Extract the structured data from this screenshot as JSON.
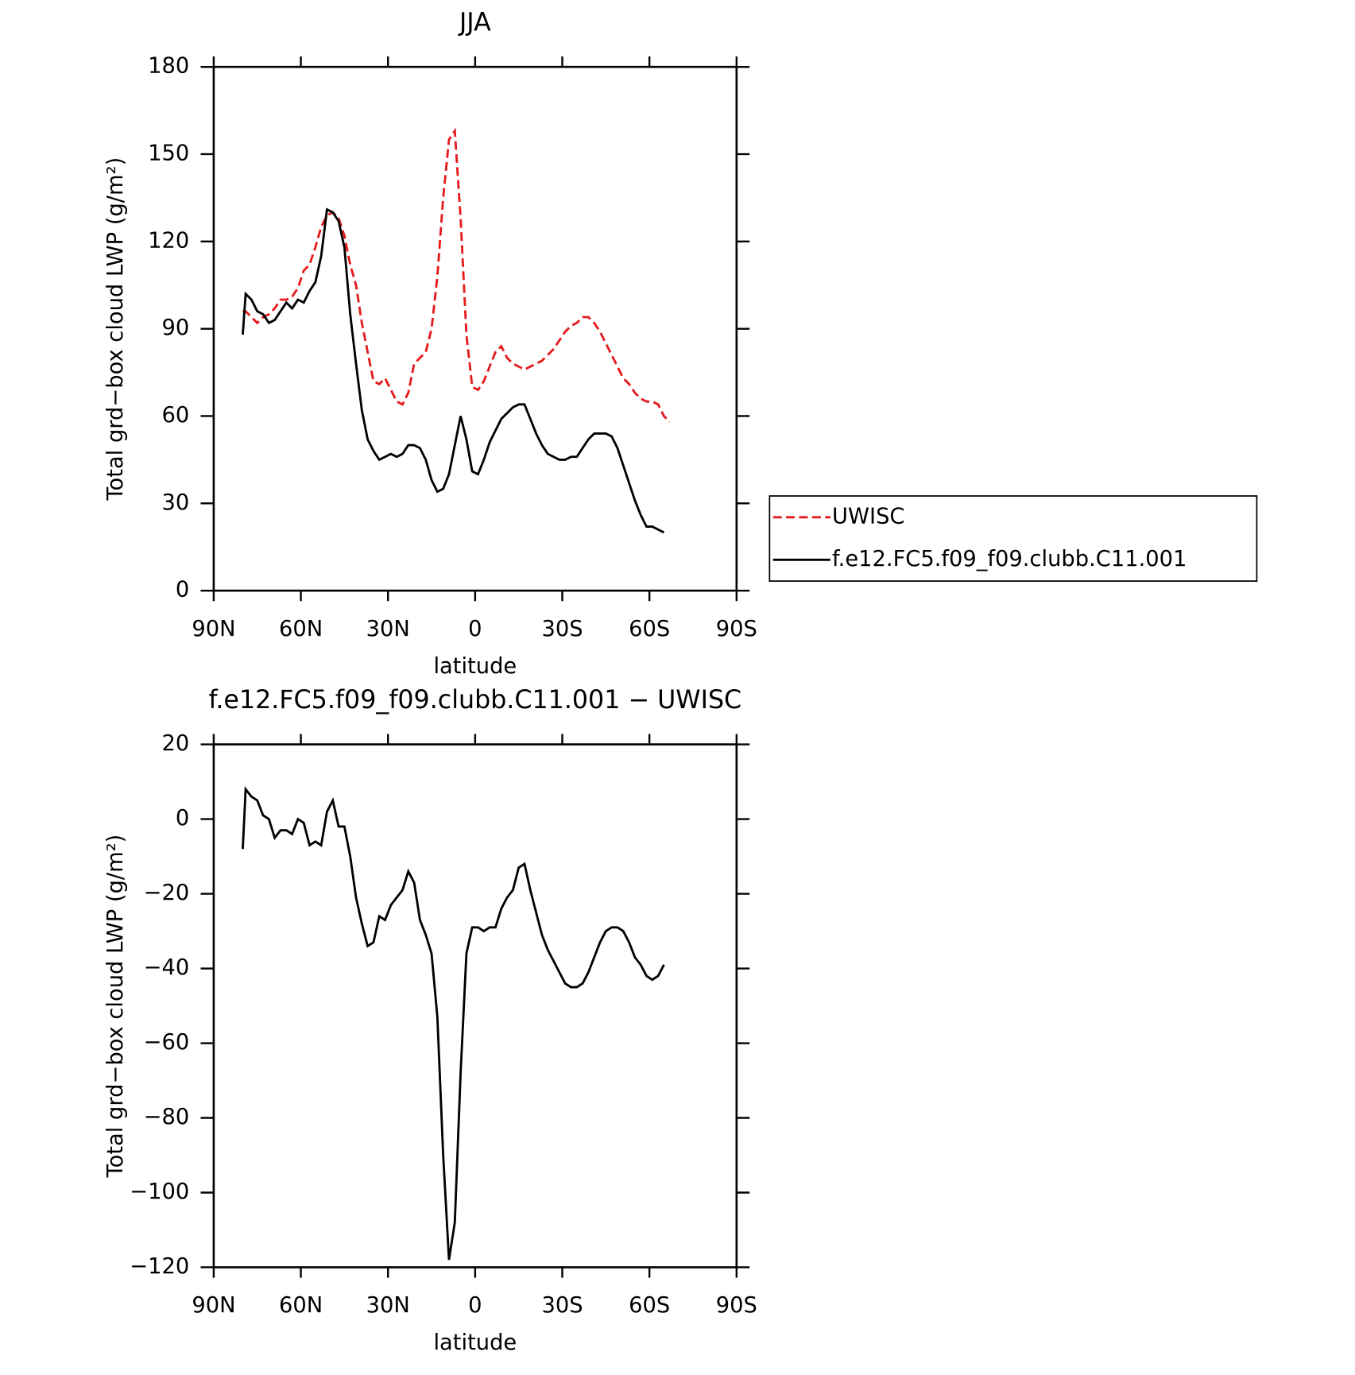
{
  "chart_data": [
    {
      "type": "line",
      "title": "JJA",
      "xlabel": "latitude",
      "ylabel": "Total grd−box cloud LWP (g/m²)",
      "x": [
        80,
        79,
        77,
        75,
        73,
        71,
        69,
        67,
        65,
        63,
        61,
        59,
        57,
        55,
        53,
        51,
        49,
        47,
        45,
        43,
        41,
        39,
        37,
        35,
        33,
        31,
        29,
        27,
        25,
        23,
        21,
        19,
        17,
        15,
        13,
        11,
        9,
        7,
        5,
        3,
        1,
        -1,
        -3,
        -5,
        -7,
        -9,
        -11,
        -13,
        -15,
        -17,
        -19,
        -21,
        -23,
        -25,
        -27,
        -29,
        -31,
        -33,
        -35,
        -37,
        -39,
        -41,
        -43,
        -45,
        -47,
        -49,
        -51,
        -53,
        -55,
        -57,
        -59,
        -61,
        -63,
        -65,
        -67
      ],
      "series": [
        {
          "name": "UWISC",
          "color": "#e41a1c",
          "linestyle": "dashed",
          "values": [
            96,
            96,
            94,
            92,
            94,
            95,
            97,
            100,
            100,
            101,
            104,
            110,
            112,
            118,
            125,
            129,
            130,
            128,
            122,
            112,
            105,
            92,
            82,
            72,
            71,
            73,
            69,
            65,
            64,
            68,
            78,
            80,
            82,
            90,
            108,
            135,
            155,
            158,
            128,
            88,
            70,
            69,
            72,
            77,
            82,
            84,
            80,
            78,
            77,
            76,
            77,
            78,
            79,
            81,
            83,
            86,
            89,
            91,
            92,
            94,
            94,
            92,
            89,
            85,
            81,
            77,
            73,
            71,
            68,
            66,
            65,
            65,
            64,
            60,
            58
          ]
        },
        {
          "name": "f.e12.FC5.f09_f09.clubb.C11.001",
          "color": "#000000",
          "linestyle": "solid",
          "values": [
            88,
            102,
            100,
            96,
            95,
            92,
            93,
            96,
            99,
            97,
            100,
            99,
            103,
            106,
            115,
            131,
            130,
            127,
            118,
            95,
            78,
            62,
            52,
            48,
            45,
            46,
            47,
            46,
            47,
            50,
            50,
            49,
            45,
            38,
            34,
            35,
            40,
            50,
            60,
            52,
            41,
            40,
            45,
            51,
            55,
            59,
            61,
            63,
            64,
            64,
            59,
            54,
            50,
            47,
            46,
            45,
            45,
            46,
            46,
            49,
            52,
            54,
            54,
            54,
            53,
            49,
            43,
            37,
            31,
            26,
            22,
            22,
            21,
            20,
            null
          ]
        }
      ],
      "xlim": [
        90,
        -90
      ],
      "xticks": [
        {
          "value": 90,
          "label": "90N"
        },
        {
          "value": 60,
          "label": "60N"
        },
        {
          "value": 30,
          "label": "30N"
        },
        0,
        {
          "value": -30,
          "label": "30S"
        },
        {
          "value": -60,
          "label": "60S"
        },
        {
          "value": -90,
          "label": "90S"
        }
      ],
      "ylim": [
        0,
        180
      ],
      "yticks": [
        0,
        30,
        60,
        90,
        120,
        150,
        180
      ],
      "grid": false,
      "legend_position": "right"
    },
    {
      "type": "line",
      "title": "f.e12.FC5.f09_f09.clubb.C11.001 − UWISC",
      "xlabel": "latitude",
      "ylabel": "Total grd−box cloud LWP (g/m²)",
      "x": [
        80,
        79,
        77,
        75,
        73,
        71,
        69,
        67,
        65,
        63,
        61,
        59,
        57,
        55,
        53,
        51,
        49,
        47,
        45,
        43,
        41,
        39,
        37,
        35,
        33,
        31,
        29,
        27,
        25,
        23,
        21,
        19,
        17,
        15,
        13,
        11,
        9,
        7,
        5,
        3,
        1,
        -1,
        -3,
        -5,
        -7,
        -9,
        -11,
        -13,
        -15,
        -17,
        -19,
        -21,
        -23,
        -25,
        -27,
        -29,
        -31,
        -33,
        -35,
        -37,
        -39,
        -41,
        -43,
        -45,
        -47,
        -49,
        -51,
        -53,
        -55,
        -57,
        -59,
        -61,
        -63,
        -65
      ],
      "values": [
        -8,
        8,
        6,
        5,
        1,
        0,
        -5,
        -3,
        -3,
        -4,
        0,
        -1,
        -7,
        -6,
        -7,
        2,
        5,
        -2,
        -2,
        -10,
        -21,
        -28,
        -34,
        -33,
        -26,
        -27,
        -23,
        -21,
        -19,
        -14,
        -17,
        -27,
        -31,
        -36,
        -53,
        -90,
        -118,
        -108,
        -68,
        -36,
        -29,
        -29,
        -30,
        -29,
        -29,
        -24,
        -21,
        -19,
        -13,
        -12,
        -19,
        -25,
        -31,
        -35,
        -38,
        -41,
        -44,
        -45,
        -45,
        -44,
        -41,
        -37,
        -33,
        -30,
        -29,
        -29,
        -30,
        -33,
        -37,
        -39,
        -42,
        -43,
        -42,
        -39
      ],
      "color": "#000000",
      "xlim": [
        90,
        -90
      ],
      "xticks": [
        {
          "value": 90,
          "label": "90N"
        },
        {
          "value": 60,
          "label": "60N"
        },
        {
          "value": 30,
          "label": "30N"
        },
        0,
        {
          "value": -30,
          "label": "30S"
        },
        {
          "value": -60,
          "label": "60S"
        },
        {
          "value": -90,
          "label": "90S"
        }
      ],
      "ylim": [
        -120,
        20
      ],
      "yticks": [
        20,
        0,
        {
          "value": -20,
          "label": "−20"
        },
        {
          "value": -40,
          "label": "−40"
        },
        {
          "value": -60,
          "label": "−60"
        },
        {
          "value": -80,
          "label": "−80"
        },
        {
          "value": -100,
          "label": "−100"
        },
        {
          "value": -120,
          "label": "−120"
        }
      ],
      "grid": false
    }
  ]
}
